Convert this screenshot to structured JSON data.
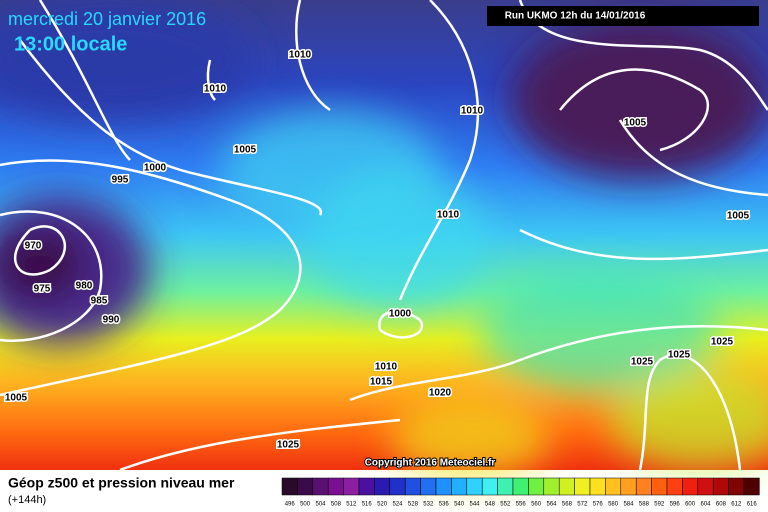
{
  "header": {
    "date": "mercredi 20 janvier 2016",
    "time": "13:00 locale",
    "run": "Run UKMO 12h du 14/01/2016"
  },
  "isobar_labels": [
    "1010",
    "1010",
    "1010",
    "1005",
    "1005",
    "1000",
    "995",
    "1010",
    "1005",
    "970",
    "975",
    "980",
    "985",
    "990",
    "1000",
    "1010",
    "1015",
    "1020",
    "1025",
    "1025",
    "1025",
    "1005",
    "1025"
  ],
  "copyright": "Copyright 2016 Meteociel.fr",
  "legend": {
    "title": "Géop z500 et pression niveau mer",
    "lead": "(+144h)",
    "scale": [
      "496",
      "500",
      "504",
      "508",
      "512",
      "516",
      "520",
      "524",
      "528",
      "532",
      "536",
      "540",
      "544",
      "548",
      "552",
      "556",
      "560",
      "564",
      "568",
      "572",
      "576",
      "580",
      "584",
      "588",
      "592",
      "596",
      "600",
      "604",
      "608",
      "612",
      "616"
    ]
  }
}
